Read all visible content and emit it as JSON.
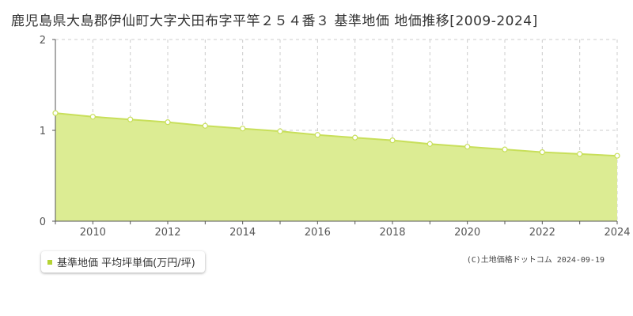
{
  "page": {
    "title": "鹿児島県大島郡伊仙町大字犬田布字平竿２５４番３ 基準地価 地価推移[2009-2024]"
  },
  "legend": {
    "label": "基準地価 平均坪単価(万円/坪)",
    "swatch_color": "#b5d334"
  },
  "copyright": "(C)土地価格ドットコム 2024-09-19",
  "colors": {
    "fill": "#dcec93",
    "line": "#c8df5a",
    "grid": "#cccccc",
    "axis": "#555555",
    "point_fill": "#ffffff"
  },
  "chart_data": {
    "type": "area",
    "title": "",
    "xlabel": "",
    "ylabel": "",
    "x": [
      2009,
      2010,
      2011,
      2012,
      2013,
      2014,
      2015,
      2016,
      2017,
      2018,
      2019,
      2020,
      2021,
      2022,
      2023,
      2024
    ],
    "x_tick_labels": [
      "2010",
      "2012",
      "2014",
      "2016",
      "2018",
      "2020",
      "2022",
      "2024"
    ],
    "y_tick_labels": [
      "0",
      "1",
      "2"
    ],
    "series": [
      {
        "values": [
          1.19,
          1.15,
          1.12,
          1.09,
          1.05,
          1.02,
          0.99,
          0.95,
          0.92,
          0.89,
          0.85,
          0.82,
          0.79,
          0.76,
          0.74,
          0.72
        ]
      }
    ],
    "xlim": [
      2009,
      2024
    ],
    "ylim": [
      0,
      2
    ],
    "grid": true,
    "legend_position": "bottom-left"
  }
}
